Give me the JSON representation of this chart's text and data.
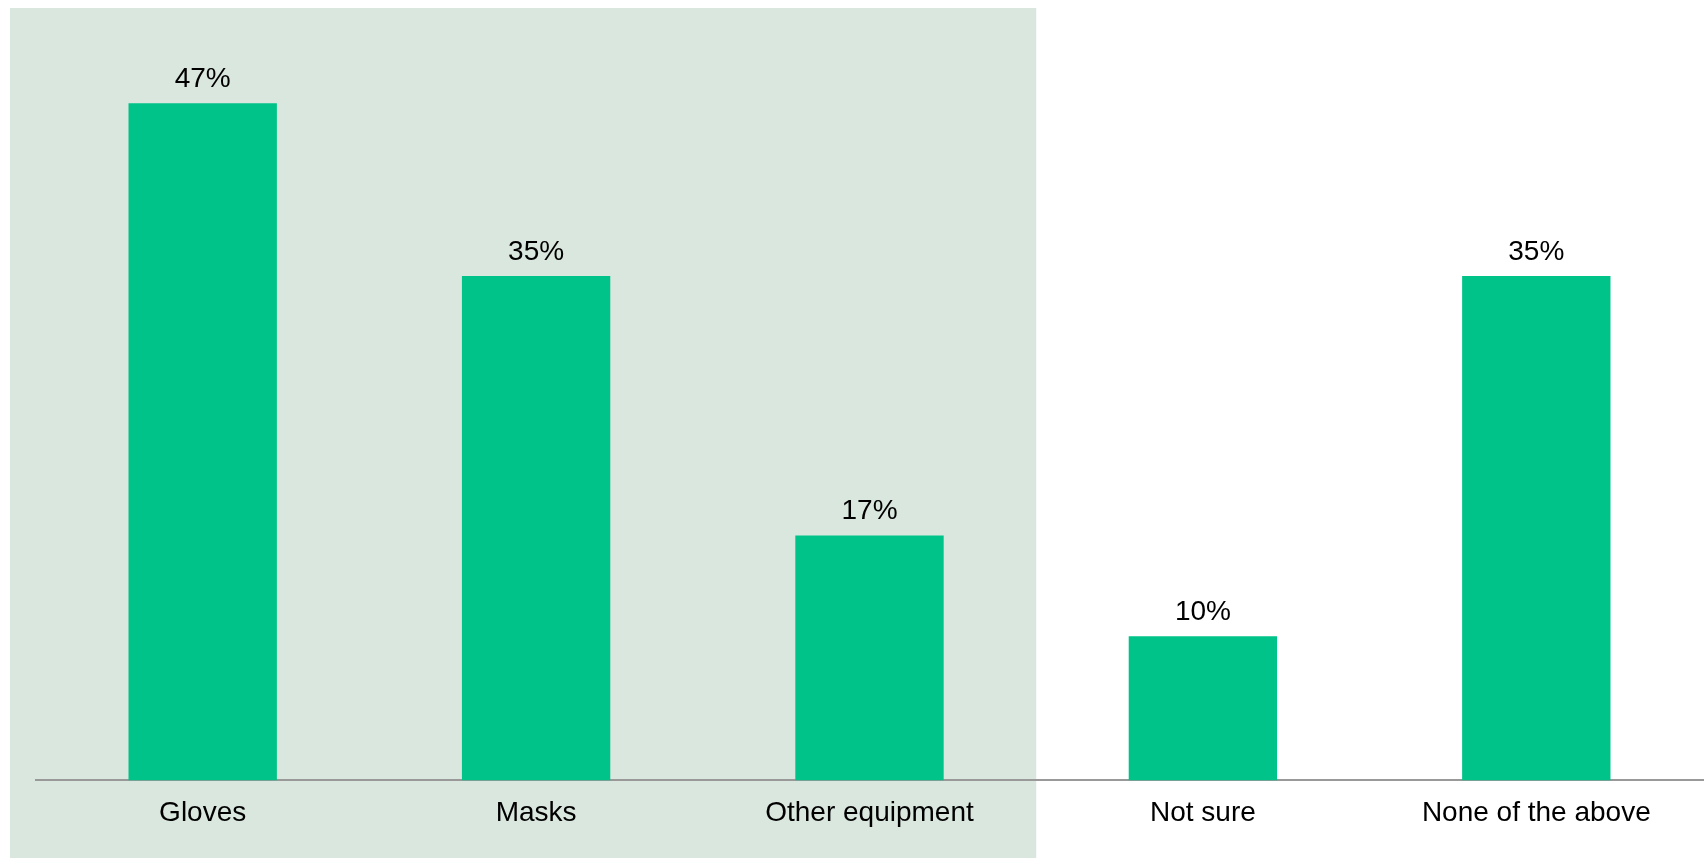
{
  "chart_data": {
    "type": "bar",
    "categories": [
      "Gloves",
      "Masks",
      "Other equipment",
      "Not sure",
      "None of the above"
    ],
    "values": [
      47,
      35,
      17,
      10,
      35
    ],
    "color": "#00c389",
    "value_labels": [
      "47%",
      "35%",
      "17%",
      "10%",
      "35%"
    ],
    "grid": false,
    "legend": false,
    "tick_labels": "x",
    "bands": [
      {
        "axis": "x",
        "from": "Gloves",
        "to": "Other equipment",
        "color": "#d9e7de"
      }
    ]
  }
}
